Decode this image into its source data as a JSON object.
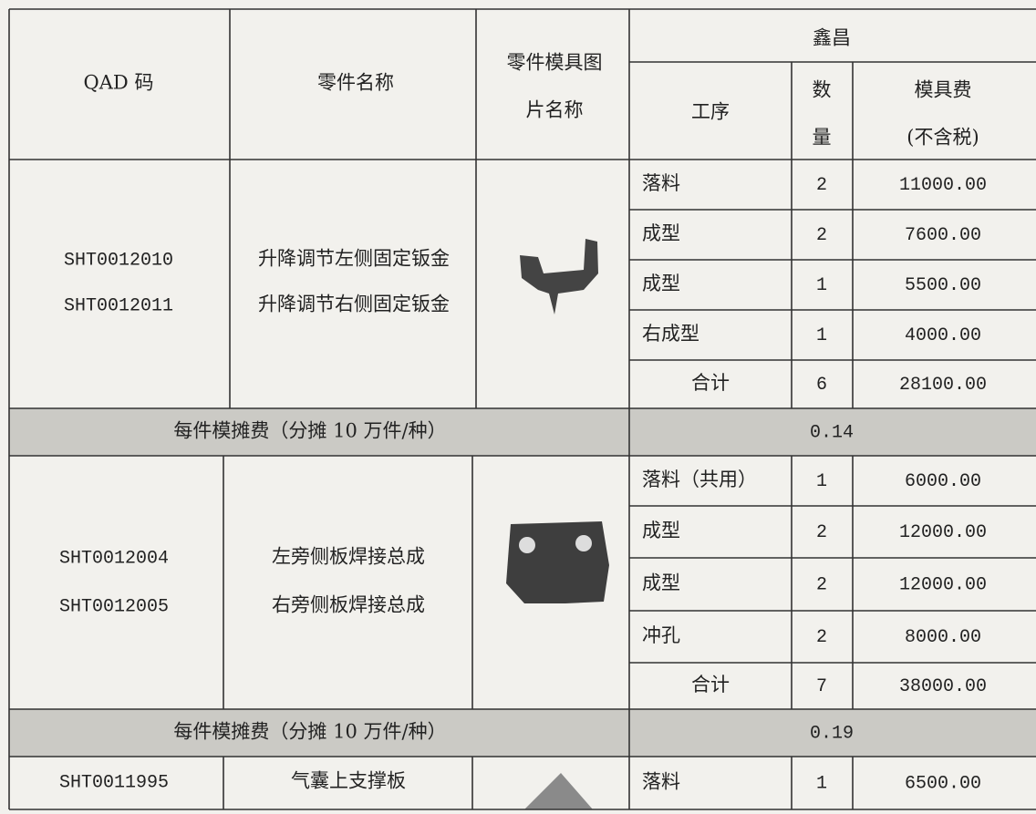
{
  "header": {
    "qad": "QAD 码",
    "part_name": "零件名称",
    "image_name": [
      "零件模具图",
      "片名称"
    ],
    "supplier": "鑫昌",
    "process": "工序",
    "qty": [
      "数",
      "量"
    ],
    "fee": [
      "模具费",
      "(不含税)"
    ]
  },
  "groups": [
    {
      "codes": [
        "SHT0012010",
        "SHT0012011"
      ],
      "names": [
        "升降调节左侧固定钣金",
        "升降调节右侧固定钣金"
      ],
      "rows": [
        [
          "落料",
          "2",
          "11000.00"
        ],
        [
          "成型",
          "2",
          "7600.00"
        ],
        [
          "成型",
          "1",
          "5500.00"
        ],
        [
          "右成型",
          "1",
          "4000.00"
        ]
      ],
      "total": {
        "label": "合计",
        "qty": "6",
        "fee": "28100.00"
      },
      "share": {
        "label": "每件模摊费（分摊 10 万件/种）",
        "value": "0.14"
      }
    },
    {
      "codes": [
        "SHT0012004",
        "SHT0012005"
      ],
      "names": [
        "左旁侧板焊接总成",
        "右旁侧板焊接总成"
      ],
      "rows": [
        [
          "落料（共用）",
          "1",
          "6000.00"
        ],
        [
          "成型",
          "2",
          "12000.00"
        ],
        [
          "成型",
          "2",
          "12000.00"
        ],
        [
          "冲孔",
          "2",
          "8000.00"
        ]
      ],
      "total": {
        "label": "合计",
        "qty": "7",
        "fee": "38000.00"
      },
      "share": {
        "label": "每件模摊费（分摊 10 万件/种）",
        "value": "0.19"
      }
    },
    {
      "codes": [
        "SHT0011995"
      ],
      "names": [
        "气囊上支撑板"
      ],
      "rows": [
        [
          "落料",
          "1",
          "6500.00"
        ]
      ]
    }
  ]
}
